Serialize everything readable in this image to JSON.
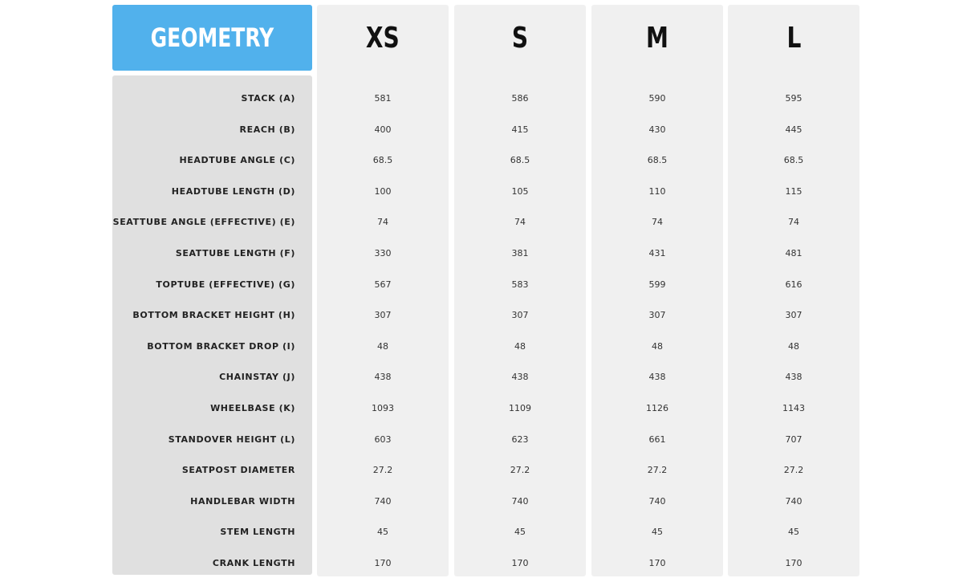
{
  "table": {
    "title": "GEOMETRY",
    "sizes": [
      "XS",
      "S",
      "M",
      "L"
    ],
    "rows": [
      {
        "label": "STACK (A)",
        "values": [
          "581",
          "586",
          "590",
          "595"
        ]
      },
      {
        "label": "REACH (B)",
        "values": [
          "400",
          "415",
          "430",
          "445"
        ]
      },
      {
        "label": "HEADTUBE ANGLE (C)",
        "values": [
          "68.5",
          "68.5",
          "68.5",
          "68.5"
        ]
      },
      {
        "label": "HEADTUBE LENGTH (D)",
        "values": [
          "100",
          "105",
          "110",
          "115"
        ]
      },
      {
        "label": "SEATTUBE ANGLE (EFFECTIVE) (E)",
        "values": [
          "74",
          "74",
          "74",
          "74"
        ]
      },
      {
        "label": "SEATTUBE LENGTH (F)",
        "values": [
          "330",
          "381",
          "431",
          "481"
        ]
      },
      {
        "label": "TOPTUBE (EFFECTIVE) (G)",
        "values": [
          "567",
          "583",
          "599",
          "616"
        ]
      },
      {
        "label": "BOTTOM BRACKET HEIGHT (H)",
        "values": [
          "307",
          "307",
          "307",
          "307"
        ]
      },
      {
        "label": "BOTTOM BRACKET DROP (I)",
        "values": [
          "48",
          "48",
          "48",
          "48"
        ]
      },
      {
        "label": "CHAINSTAY (J)",
        "values": [
          "438",
          "438",
          "438",
          "438"
        ]
      },
      {
        "label": "WHEELBASE (K)",
        "values": [
          "1093",
          "1109",
          "1126",
          "1143"
        ]
      },
      {
        "label": "STANDOVER HEIGHT (L)",
        "values": [
          "603",
          "623",
          "661",
          "707"
        ]
      },
      {
        "label": "SEATPOST DIAMETER",
        "values": [
          "27.2",
          "27.2",
          "27.2",
          "27.2"
        ]
      },
      {
        "label": "HANDLEBAR WIDTH",
        "values": [
          "740",
          "740",
          "740",
          "740"
        ]
      },
      {
        "label": "STEM LENGTH",
        "values": [
          "45",
          "45",
          "45",
          "45"
        ]
      },
      {
        "label": "CRANK LENGTH",
        "values": [
          "170",
          "170",
          "170",
          "170"
        ]
      }
    ]
  },
  "colors": {
    "header_accent": "#51b1ec",
    "label_column": "#e0e0e0",
    "size_column": "#f0f0f0"
  }
}
